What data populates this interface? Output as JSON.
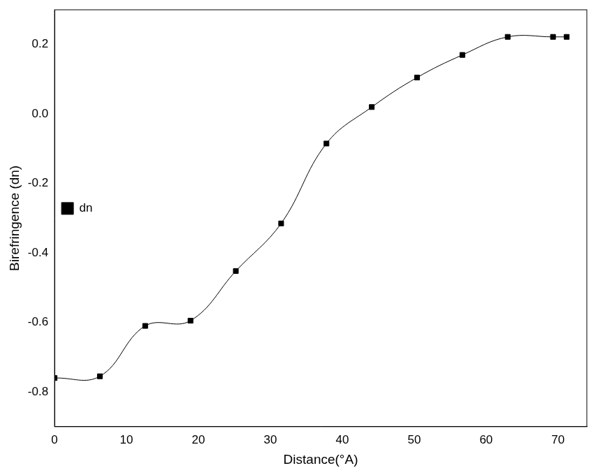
{
  "chart_data": {
    "type": "line",
    "x_label": "Distance(°A)",
    "y_label": "Birefringence (dn)",
    "x": [
      0,
      6.3,
      12.6,
      18.9,
      25.2,
      31.5,
      37.8,
      44.1,
      50.4,
      56.7,
      63,
      69.3,
      71.2
    ],
    "series": [
      {
        "name": "dn",
        "color": "#000000",
        "marker": "square",
        "line_style": "solid",
        "values": [
          -0.76,
          -0.755,
          -0.61,
          -0.595,
          -0.452,
          -0.315,
          -0.085,
          0.02,
          0.105,
          0.17,
          0.222,
          0.222,
          0.222
        ]
      }
    ],
    "xlim": [
      0,
      74
    ],
    "xticks": [
      0,
      10,
      20,
      30,
      40,
      50,
      60,
      70
    ],
    "ylim": [
      -0.9,
      0.3
    ],
    "yticks": [
      -0.8,
      -0.6,
      -0.4,
      -0.2,
      {
        "value": 0,
        "label": "0.0"
      },
      0.2
    ],
    "grid": false,
    "legend": "top"
  }
}
